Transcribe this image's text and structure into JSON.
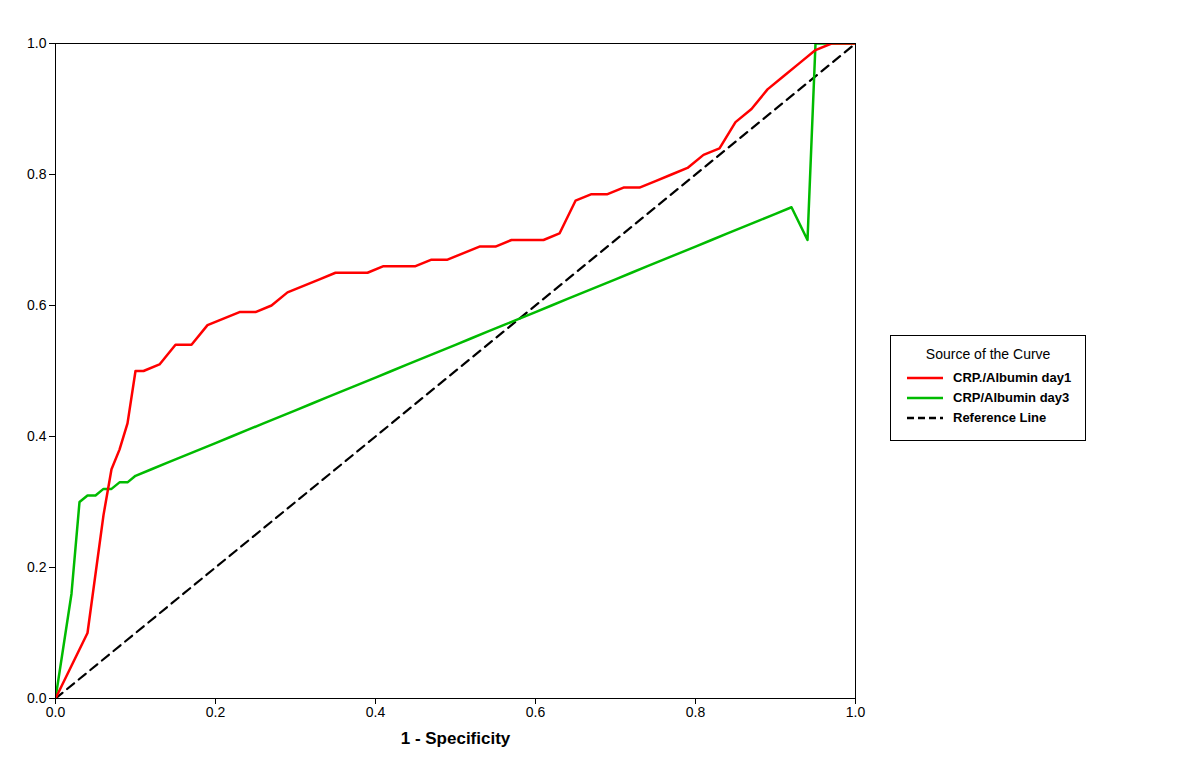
{
  "chart_data": {
    "type": "line",
    "xlabel": "1 - Specificity",
    "legend_title": "Source of the Curve",
    "series": [
      {
        "name": "CRP./Albumin day1",
        "color": "#FF0000",
        "line_style": "solid",
        "x": [
          0.0,
          0.02,
          0.04,
          0.06,
          0.07,
          0.08,
          0.09,
          0.1,
          0.11,
          0.13,
          0.15,
          0.17,
          0.19,
          0.21,
          0.23,
          0.25,
          0.27,
          0.29,
          0.31,
          0.33,
          0.35,
          0.37,
          0.39,
          0.41,
          0.43,
          0.45,
          0.47,
          0.49,
          0.51,
          0.53,
          0.55,
          0.57,
          0.59,
          0.61,
          0.63,
          0.65,
          0.67,
          0.69,
          0.71,
          0.73,
          0.75,
          0.77,
          0.79,
          0.81,
          0.83,
          0.85,
          0.87,
          0.89,
          0.91,
          0.93,
          0.95,
          0.97,
          1.0
        ],
        "values": [
          0.0,
          0.05,
          0.1,
          0.28,
          0.35,
          0.38,
          0.42,
          0.5,
          0.5,
          0.51,
          0.54,
          0.54,
          0.57,
          0.58,
          0.59,
          0.59,
          0.6,
          0.62,
          0.63,
          0.64,
          0.65,
          0.65,
          0.65,
          0.66,
          0.66,
          0.66,
          0.67,
          0.67,
          0.68,
          0.69,
          0.69,
          0.7,
          0.7,
          0.7,
          0.71,
          0.76,
          0.77,
          0.77,
          0.78,
          0.78,
          0.79,
          0.8,
          0.81,
          0.83,
          0.84,
          0.88,
          0.9,
          0.93,
          0.95,
          0.97,
          0.99,
          1.0,
          1.0
        ]
      },
      {
        "name": "CRP/Albumin day3",
        "color": "#00BB00",
        "line_style": "solid",
        "x": [
          0.0,
          0.02,
          0.03,
          0.04,
          0.05,
          0.06,
          0.07,
          0.08,
          0.09,
          0.1,
          0.12,
          0.14,
          0.16,
          0.18,
          0.2,
          0.22,
          0.24,
          0.26,
          0.28,
          0.3,
          0.32,
          0.34,
          0.36,
          0.38,
          0.4,
          0.42,
          0.44,
          0.46,
          0.48,
          0.5,
          0.52,
          0.54,
          0.56,
          0.58,
          0.6,
          0.62,
          0.64,
          0.66,
          0.68,
          0.7,
          0.72,
          0.74,
          0.76,
          0.78,
          0.8,
          0.82,
          0.84,
          0.86,
          0.88,
          0.9,
          0.92,
          0.94,
          0.95,
          0.96,
          1.0
        ],
        "values": [
          0.0,
          0.16,
          0.3,
          0.31,
          0.31,
          0.32,
          0.32,
          0.33,
          0.33,
          0.34,
          0.35,
          0.36,
          0.37,
          0.38,
          0.39,
          0.4,
          0.41,
          0.42,
          0.43,
          0.44,
          0.45,
          0.46,
          0.47,
          0.48,
          0.49,
          0.5,
          0.51,
          0.52,
          0.53,
          0.54,
          0.55,
          0.56,
          0.57,
          0.58,
          0.59,
          0.6,
          0.61,
          0.62,
          0.63,
          0.64,
          0.65,
          0.66,
          0.67,
          0.68,
          0.69,
          0.7,
          0.71,
          0.72,
          0.73,
          0.74,
          0.75,
          0.7,
          1.0,
          1.0,
          1.0
        ]
      },
      {
        "name": "Reference Line",
        "color": "#000000",
        "line_style": "dashed",
        "x": [
          0.0,
          1.0
        ],
        "values": [
          0.0,
          1.0
        ]
      }
    ],
    "xlim": [
      0.0,
      1.0
    ],
    "ylim": [
      0.0,
      1.0
    ],
    "xticks": [
      {
        "value": 0.0,
        "label": "0.0"
      },
      0.2,
      0.4,
      0.6,
      0.8,
      {
        "value": 1.0,
        "label": "1.0"
      }
    ],
    "yticks": [
      {
        "value": 0.0,
        "label": "0.0"
      },
      0.2,
      0.4,
      0.6,
      0.8,
      {
        "value": 1.0,
        "label": "1.0"
      }
    ],
    "grid": false,
    "legend": "right"
  }
}
